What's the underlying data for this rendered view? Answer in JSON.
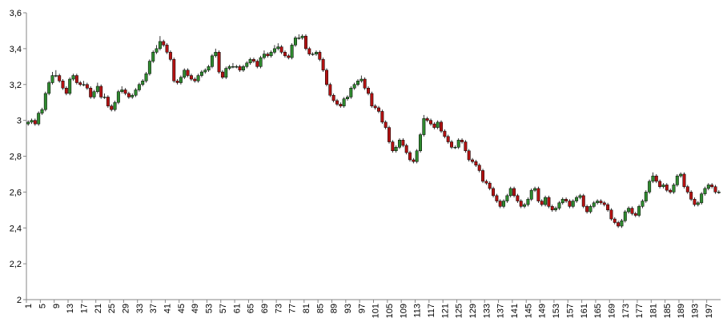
{
  "chart_data": {
    "type": "candlestick",
    "up_color": "#2f8a2f",
    "down_color": "#b31212",
    "ylim": [
      2,
      3.6
    ],
    "yticks": [
      2,
      {
        "value": 2.2,
        "label": "2,2"
      },
      {
        "value": 2.4,
        "label": "2,4"
      },
      {
        "value": 2.6,
        "label": "2,6"
      },
      {
        "value": 2.8,
        "label": "2,8"
      },
      3,
      {
        "value": 3.2,
        "label": "3,2"
      },
      {
        "value": 3.4,
        "label": "3,4"
      },
      {
        "value": 3.6,
        "label": "3,6"
      }
    ],
    "categories": [
      1,
      null,
      null,
      null,
      5,
      null,
      null,
      null,
      9,
      null,
      null,
      null,
      13,
      null,
      null,
      null,
      17,
      null,
      null,
      null,
      21,
      null,
      null,
      null,
      25,
      null,
      null,
      null,
      29,
      null,
      null,
      null,
      33,
      null,
      null,
      null,
      37,
      null,
      null,
      null,
      41,
      null,
      null,
      null,
      45,
      null,
      null,
      null,
      49,
      null,
      null,
      null,
      53,
      null,
      null,
      null,
      57,
      null,
      null,
      null,
      61,
      null,
      null,
      null,
      65,
      null,
      null,
      null,
      69,
      null,
      null,
      null,
      73,
      null,
      null,
      null,
      77,
      null,
      null,
      null,
      81,
      null,
      null,
      null,
      85,
      null,
      null,
      null,
      89,
      null,
      null,
      null,
      93,
      null,
      null,
      null,
      97,
      null,
      null,
      null,
      101,
      null,
      null,
      null,
      105,
      null,
      null,
      null,
      109,
      null,
      null,
      null,
      113,
      null,
      null,
      null,
      117,
      null,
      null,
      null,
      121,
      null,
      null,
      null,
      125,
      null,
      null,
      null,
      129,
      null,
      null,
      null,
      133,
      null,
      null,
      null,
      137,
      null,
      null,
      null,
      141,
      null,
      null,
      null,
      145,
      null,
      null,
      null,
      149,
      null,
      null,
      null,
      153,
      null,
      null,
      null,
      157,
      null,
      null,
      null,
      161,
      null,
      null,
      null,
      165,
      null,
      null,
      null,
      169,
      null,
      null,
      null,
      173,
      null,
      null,
      null,
      177,
      null,
      null,
      null,
      181,
      null,
      null,
      null,
      185,
      null,
      null,
      null,
      189,
      null,
      null,
      null,
      193,
      null,
      null,
      null,
      197,
      null,
      null,
      null
    ],
    "ohlc": [
      [
        2.98,
        3.0,
        2.97,
        2.99
      ],
      [
        2.99,
        3.01,
        2.98,
        3.0
      ],
      [
        3.0,
        3.01,
        2.97,
        2.98
      ],
      [
        2.98,
        3.05,
        2.97,
        3.04
      ],
      [
        3.04,
        3.07,
        3.03,
        3.06
      ],
      [
        3.06,
        3.16,
        3.05,
        3.15
      ],
      [
        3.15,
        3.22,
        3.14,
        3.21
      ],
      [
        3.21,
        3.27,
        3.2,
        3.25
      ],
      [
        3.25,
        3.28,
        3.24,
        3.25
      ],
      [
        3.25,
        3.26,
        3.21,
        3.22
      ],
      [
        3.22,
        3.23,
        3.17,
        3.18
      ],
      [
        3.18,
        3.19,
        3.14,
        3.15
      ],
      [
        3.15,
        3.24,
        3.14,
        3.23
      ],
      [
        3.23,
        3.26,
        3.22,
        3.25
      ],
      [
        3.25,
        3.26,
        3.2,
        3.21
      ],
      [
        3.21,
        3.22,
        3.19,
        3.2
      ],
      [
        3.2,
        3.22,
        3.19,
        3.2
      ],
      [
        3.2,
        3.21,
        3.17,
        3.18
      ],
      [
        3.18,
        3.19,
        3.12,
        3.13
      ],
      [
        3.13,
        3.17,
        3.12,
        3.16
      ],
      [
        3.16,
        3.21,
        3.15,
        3.19
      ],
      [
        3.19,
        3.2,
        3.12,
        3.13
      ],
      [
        3.13,
        3.15,
        3.12,
        3.13
      ],
      [
        3.13,
        3.14,
        3.07,
        3.08
      ],
      [
        3.08,
        3.09,
        3.05,
        3.06
      ],
      [
        3.06,
        3.11,
        3.05,
        3.1
      ],
      [
        3.1,
        3.17,
        3.09,
        3.16
      ],
      [
        3.16,
        3.19,
        3.15,
        3.17
      ],
      [
        3.17,
        3.18,
        3.14,
        3.15
      ],
      [
        3.15,
        3.16,
        3.12,
        3.13
      ],
      [
        3.13,
        3.15,
        3.12,
        3.14
      ],
      [
        3.14,
        3.18,
        3.13,
        3.17
      ],
      [
        3.17,
        3.21,
        3.16,
        3.2
      ],
      [
        3.2,
        3.23,
        3.19,
        3.22
      ],
      [
        3.22,
        3.27,
        3.21,
        3.26
      ],
      [
        3.26,
        3.34,
        3.25,
        3.33
      ],
      [
        3.33,
        3.39,
        3.32,
        3.38
      ],
      [
        3.38,
        3.42,
        3.37,
        3.4
      ],
      [
        3.4,
        3.47,
        3.39,
        3.44
      ],
      [
        3.44,
        3.45,
        3.41,
        3.42
      ],
      [
        3.42,
        3.43,
        3.37,
        3.38
      ],
      [
        3.38,
        3.39,
        3.33,
        3.34
      ],
      [
        3.34,
        3.35,
        3.21,
        3.22
      ],
      [
        3.22,
        3.23,
        3.2,
        3.21
      ],
      [
        3.21,
        3.25,
        3.2,
        3.24
      ],
      [
        3.24,
        3.29,
        3.23,
        3.28
      ],
      [
        3.28,
        3.29,
        3.24,
        3.25
      ],
      [
        3.25,
        3.26,
        3.22,
        3.23
      ],
      [
        3.23,
        3.24,
        3.21,
        3.22
      ],
      [
        3.22,
        3.26,
        3.21,
        3.25
      ],
      [
        3.25,
        3.28,
        3.24,
        3.27
      ],
      [
        3.27,
        3.29,
        3.26,
        3.28
      ],
      [
        3.28,
        3.31,
        3.27,
        3.3
      ],
      [
        3.3,
        3.37,
        3.29,
        3.36
      ],
      [
        3.36,
        3.4,
        3.35,
        3.38
      ],
      [
        3.38,
        3.39,
        3.26,
        3.27
      ],
      [
        3.27,
        3.28,
        3.23,
        3.24
      ],
      [
        3.24,
        3.3,
        3.23,
        3.29
      ],
      [
        3.29,
        3.31,
        3.28,
        3.3
      ],
      [
        3.3,
        3.32,
        3.29,
        3.3
      ],
      [
        3.3,
        3.31,
        3.29,
        3.3
      ],
      [
        3.3,
        3.31,
        3.27,
        3.28
      ],
      [
        3.28,
        3.31,
        3.27,
        3.3
      ],
      [
        3.3,
        3.33,
        3.29,
        3.32
      ],
      [
        3.32,
        3.35,
        3.31,
        3.34
      ],
      [
        3.34,
        3.35,
        3.32,
        3.33
      ],
      [
        3.33,
        3.34,
        3.29,
        3.3
      ],
      [
        3.3,
        3.36,
        3.29,
        3.35
      ],
      [
        3.35,
        3.39,
        3.34,
        3.37
      ],
      [
        3.37,
        3.38,
        3.35,
        3.36
      ],
      [
        3.36,
        3.39,
        3.35,
        3.38
      ],
      [
        3.38,
        3.42,
        3.37,
        3.4
      ],
      [
        3.4,
        3.43,
        3.39,
        3.41
      ],
      [
        3.41,
        3.42,
        3.37,
        3.38
      ],
      [
        3.38,
        3.39,
        3.35,
        3.36
      ],
      [
        3.36,
        3.37,
        3.34,
        3.35
      ],
      [
        3.35,
        3.43,
        3.34,
        3.42
      ],
      [
        3.42,
        3.47,
        3.41,
        3.46
      ],
      [
        3.46,
        3.48,
        3.45,
        3.46
      ],
      [
        3.46,
        3.48,
        3.45,
        3.47
      ],
      [
        3.47,
        3.48,
        3.39,
        3.4
      ],
      [
        3.4,
        3.41,
        3.36,
        3.37
      ],
      [
        3.37,
        3.38,
        3.36,
        3.37
      ],
      [
        3.37,
        3.39,
        3.36,
        3.38
      ],
      [
        3.38,
        3.39,
        3.33,
        3.34
      ],
      [
        3.34,
        3.35,
        3.27,
        3.28
      ],
      [
        3.28,
        3.29,
        3.19,
        3.2
      ],
      [
        3.2,
        3.21,
        3.13,
        3.14
      ],
      [
        3.14,
        3.15,
        3.1,
        3.11
      ],
      [
        3.11,
        3.12,
        3.08,
        3.09
      ],
      [
        3.09,
        3.1,
        3.07,
        3.08
      ],
      [
        3.08,
        3.13,
        3.07,
        3.12
      ],
      [
        3.12,
        3.14,
        3.11,
        3.13
      ],
      [
        3.13,
        3.19,
        3.12,
        3.18
      ],
      [
        3.18,
        3.21,
        3.17,
        3.2
      ],
      [
        3.2,
        3.23,
        3.19,
        3.22
      ],
      [
        3.22,
        3.25,
        3.21,
        3.23
      ],
      [
        3.23,
        3.24,
        3.17,
        3.18
      ],
      [
        3.18,
        3.19,
        3.14,
        3.15
      ],
      [
        3.15,
        3.16,
        3.07,
        3.08
      ],
      [
        3.08,
        3.09,
        3.06,
        3.07
      ],
      [
        3.07,
        3.08,
        3.04,
        3.05
      ],
      [
        3.05,
        3.06,
        2.98,
        2.99
      ],
      [
        2.99,
        3.0,
        2.95,
        2.96
      ],
      [
        2.96,
        2.97,
        2.87,
        2.88
      ],
      [
        2.88,
        2.89,
        2.82,
        2.83
      ],
      [
        2.83,
        2.86,
        2.82,
        2.85
      ],
      [
        2.85,
        2.9,
        2.84,
        2.89
      ],
      [
        2.89,
        2.9,
        2.85,
        2.86
      ],
      [
        2.86,
        2.87,
        2.81,
        2.82
      ],
      [
        2.82,
        2.83,
        2.77,
        2.78
      ],
      [
        2.78,
        2.79,
        2.76,
        2.77
      ],
      [
        2.77,
        2.84,
        2.76,
        2.83
      ],
      [
        2.83,
        2.93,
        2.82,
        2.92
      ],
      [
        2.92,
        3.03,
        2.91,
        3.01
      ],
      [
        3.01,
        3.02,
        2.99,
        3.0
      ],
      [
        3.0,
        3.01,
        2.97,
        2.98
      ],
      [
        2.98,
        2.99,
        2.95,
        2.96
      ],
      [
        2.96,
        3.0,
        2.95,
        2.99
      ],
      [
        2.99,
        3.0,
        2.93,
        2.94
      ],
      [
        2.94,
        2.95,
        2.9,
        2.91
      ],
      [
        2.91,
        2.92,
        2.87,
        2.88
      ],
      [
        2.88,
        2.89,
        2.84,
        2.85
      ],
      [
        2.85,
        2.86,
        2.84,
        2.85
      ],
      [
        2.85,
        2.9,
        2.84,
        2.89
      ],
      [
        2.89,
        2.9,
        2.87,
        2.88
      ],
      [
        2.88,
        2.89,
        2.82,
        2.83
      ],
      [
        2.83,
        2.84,
        2.77,
        2.78
      ],
      [
        2.78,
        2.79,
        2.76,
        2.77
      ],
      [
        2.77,
        2.78,
        2.74,
        2.75
      ],
      [
        2.75,
        2.76,
        2.71,
        2.72
      ],
      [
        2.72,
        2.73,
        2.65,
        2.66
      ],
      [
        2.66,
        2.67,
        2.64,
        2.65
      ],
      [
        2.65,
        2.66,
        2.61,
        2.62
      ],
      [
        2.62,
        2.63,
        2.57,
        2.58
      ],
      [
        2.58,
        2.59,
        2.54,
        2.55
      ],
      [
        2.55,
        2.56,
        2.51,
        2.52
      ],
      [
        2.52,
        2.56,
        2.51,
        2.55
      ],
      [
        2.55,
        2.59,
        2.54,
        2.58
      ],
      [
        2.58,
        2.63,
        2.57,
        2.62
      ],
      [
        2.62,
        2.63,
        2.57,
        2.58
      ],
      [
        2.58,
        2.59,
        2.54,
        2.55
      ],
      [
        2.55,
        2.56,
        2.51,
        2.52
      ],
      [
        2.52,
        2.54,
        2.51,
        2.53
      ],
      [
        2.53,
        2.57,
        2.52,
        2.56
      ],
      [
        2.56,
        2.62,
        2.55,
        2.61
      ],
      [
        2.61,
        2.63,
        2.6,
        2.62
      ],
      [
        2.62,
        2.63,
        2.54,
        2.55
      ],
      [
        2.55,
        2.56,
        2.52,
        2.53
      ],
      [
        2.53,
        2.58,
        2.52,
        2.57
      ],
      [
        2.57,
        2.58,
        2.51,
        2.52
      ],
      [
        2.52,
        2.53,
        2.49,
        2.5
      ],
      [
        2.5,
        2.52,
        2.49,
        2.51
      ],
      [
        2.51,
        2.55,
        2.5,
        2.54
      ],
      [
        2.54,
        2.57,
        2.53,
        2.56
      ],
      [
        2.56,
        2.57,
        2.54,
        2.55
      ],
      [
        2.55,
        2.56,
        2.51,
        2.52
      ],
      [
        2.52,
        2.56,
        2.51,
        2.55
      ],
      [
        2.55,
        2.58,
        2.54,
        2.57
      ],
      [
        2.57,
        2.59,
        2.56,
        2.58
      ],
      [
        2.58,
        2.59,
        2.51,
        2.52
      ],
      [
        2.52,
        2.53,
        2.48,
        2.49
      ],
      [
        2.49,
        2.53,
        2.48,
        2.52
      ],
      [
        2.52,
        2.55,
        2.51,
        2.54
      ],
      [
        2.54,
        2.56,
        2.53,
        2.55
      ],
      [
        2.55,
        2.56,
        2.53,
        2.54
      ],
      [
        2.54,
        2.55,
        2.52,
        2.53
      ],
      [
        2.53,
        2.54,
        2.49,
        2.5
      ],
      [
        2.5,
        2.51,
        2.44,
        2.45
      ],
      [
        2.45,
        2.46,
        2.42,
        2.43
      ],
      [
        2.43,
        2.44,
        2.4,
        2.41
      ],
      [
        2.41,
        2.45,
        2.4,
        2.44
      ],
      [
        2.44,
        2.5,
        2.43,
        2.49
      ],
      [
        2.49,
        2.52,
        2.48,
        2.51
      ],
      [
        2.51,
        2.52,
        2.47,
        2.48
      ],
      [
        2.48,
        2.49,
        2.46,
        2.47
      ],
      [
        2.47,
        2.53,
        2.46,
        2.52
      ],
      [
        2.52,
        2.56,
        2.51,
        2.55
      ],
      [
        2.55,
        2.61,
        2.54,
        2.6
      ],
      [
        2.6,
        2.67,
        2.59,
        2.66
      ],
      [
        2.66,
        2.71,
        2.65,
        2.69
      ],
      [
        2.69,
        2.7,
        2.65,
        2.66
      ],
      [
        2.66,
        2.67,
        2.62,
        2.63
      ],
      [
        2.63,
        2.65,
        2.62,
        2.64
      ],
      [
        2.64,
        2.65,
        2.6,
        2.61
      ],
      [
        2.61,
        2.62,
        2.59,
        2.6
      ],
      [
        2.6,
        2.65,
        2.59,
        2.64
      ],
      [
        2.64,
        2.7,
        2.63,
        2.69
      ],
      [
        2.69,
        2.71,
        2.68,
        2.7
      ],
      [
        2.7,
        2.71,
        2.62,
        2.63
      ],
      [
        2.63,
        2.64,
        2.59,
        2.6
      ],
      [
        2.6,
        2.61,
        2.55,
        2.56
      ],
      [
        2.56,
        2.57,
        2.52,
        2.53
      ],
      [
        2.53,
        2.55,
        2.52,
        2.54
      ],
      [
        2.54,
        2.6,
        2.53,
        2.59
      ],
      [
        2.59,
        2.63,
        2.58,
        2.62
      ],
      [
        2.62,
        2.65,
        2.61,
        2.64
      ],
      [
        2.64,
        2.65,
        2.62,
        2.63
      ],
      [
        2.63,
        2.64,
        2.59,
        2.6
      ],
      [
        2.6,
        2.61,
        2.59,
        2.6
      ]
    ]
  }
}
